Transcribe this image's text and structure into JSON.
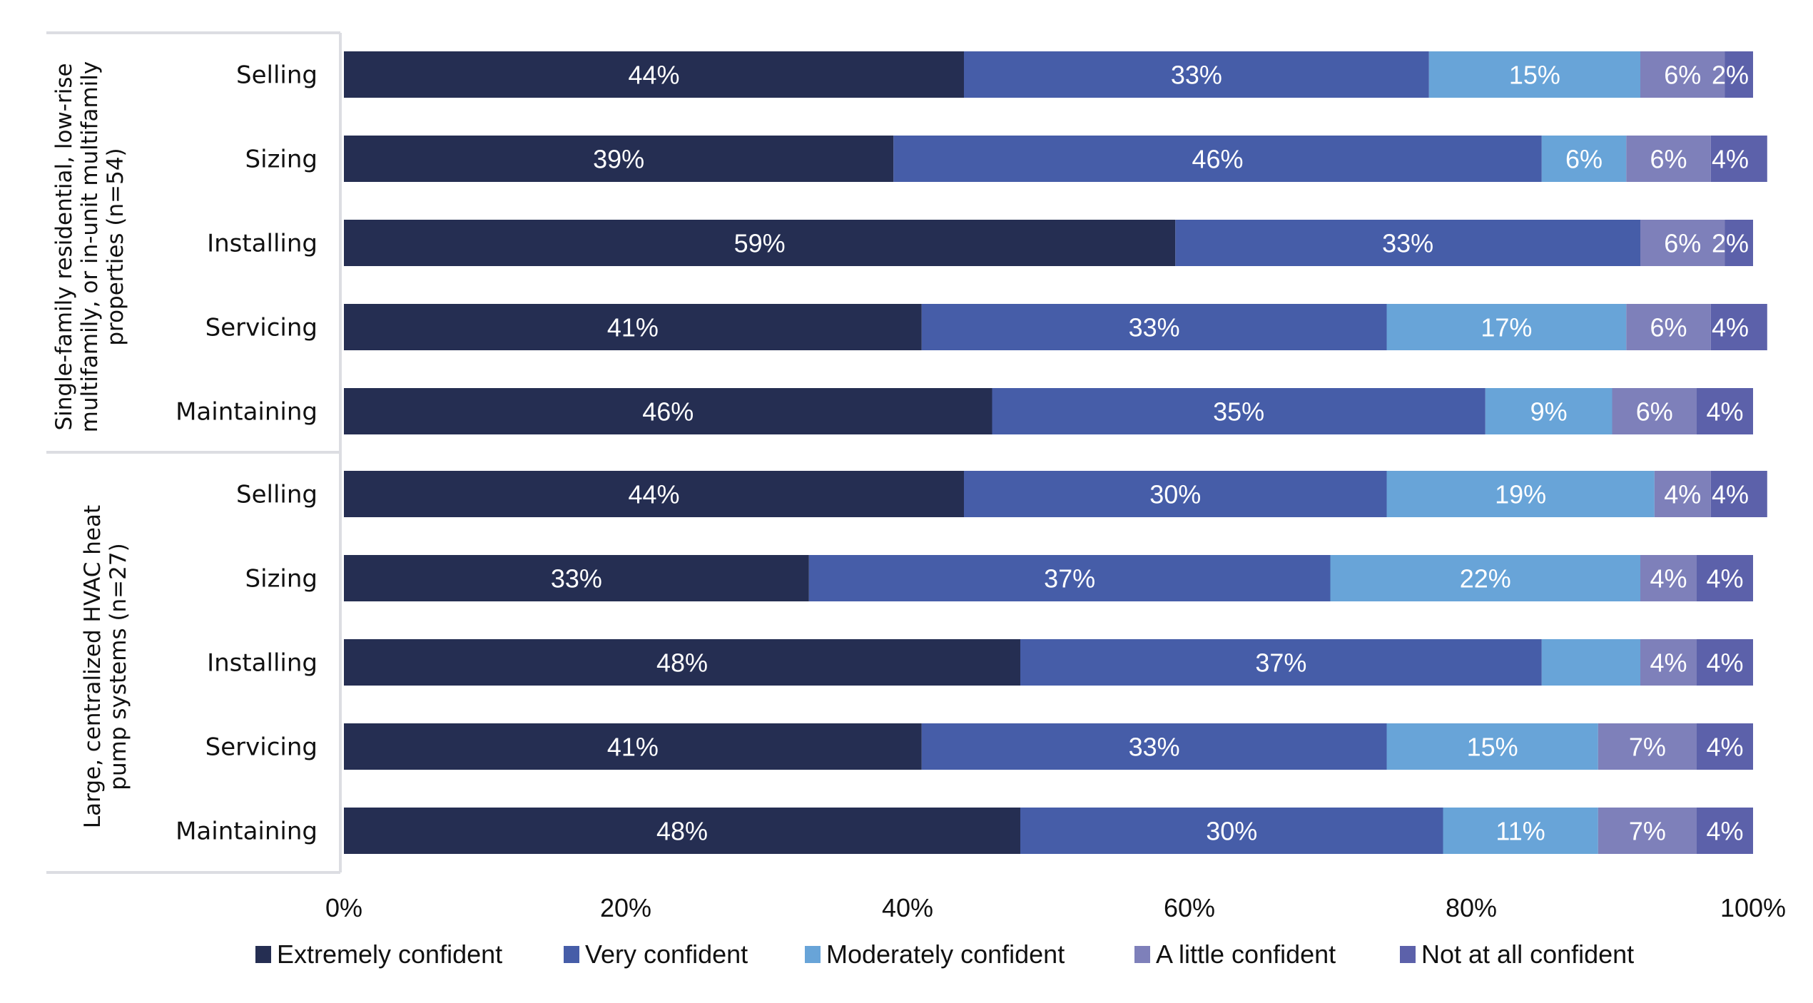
{
  "chart_data": {
    "type": "bar",
    "orientation": "horizontal",
    "stacked": true,
    "title": "",
    "xlabel": "",
    "ylabel": "",
    "xlim": [
      0,
      100
    ],
    "x_ticks": [
      "0%",
      "20%",
      "40%",
      "60%",
      "80%",
      "100%"
    ],
    "legend_position": "bottom",
    "grid": false,
    "series": [
      {
        "name": "Extremely confident",
        "color": "#252E52"
      },
      {
        "name": "Very confident",
        "color": "#465DA8"
      },
      {
        "name": "Moderately confident",
        "color": "#68A4D8"
      },
      {
        "name": "A little confident",
        "color": "#7E80BA"
      },
      {
        "name": "Not at all confident",
        "color": "#5C61AA"
      }
    ],
    "groups": [
      {
        "label": "Single-family residential, low-rise multifamily, or in-unit multifamily properties (n=54)",
        "label_lines": [
          "Single-family residential, low-rise",
          "multifamily, or in-unit multifamily",
          "properties (n=54)"
        ],
        "categories": [
          {
            "name": "Selling",
            "values": [
              44,
              33,
              15,
              6,
              2
            ],
            "labels": [
              "44%",
              "33%",
              "15%",
              "6%",
              "2%"
            ]
          },
          {
            "name": "Sizing",
            "values": [
              39,
              46,
              6,
              6,
              4
            ],
            "labels": [
              "39%",
              "46%",
              "6%",
              "6%",
              "4%"
            ]
          },
          {
            "name": "Installing",
            "values": [
              59,
              33,
              0,
              6,
              2
            ],
            "labels": [
              "59%",
              "33%",
              "",
              "6%",
              "2%"
            ]
          },
          {
            "name": "Servicing",
            "values": [
              41,
              33,
              17,
              6,
              4
            ],
            "labels": [
              "41%",
              "33%",
              "17%",
              "6%",
              "4%"
            ]
          },
          {
            "name": "Maintaining",
            "values": [
              46,
              35,
              9,
              6,
              4
            ],
            "labels": [
              "46%",
              "35%",
              "9%",
              "6%",
              "4%"
            ]
          }
        ]
      },
      {
        "label": "Large, centralized HVAC heat pump systems (n=27)",
        "label_lines": [
          "Large, centralized HVAC heat",
          "pump systems (n=27)"
        ],
        "categories": [
          {
            "name": "Selling",
            "values": [
              44,
              30,
              19,
              4,
              4
            ],
            "labels": [
              "44%",
              "30%",
              "19%",
              "4%",
              "4%"
            ]
          },
          {
            "name": "Sizing",
            "values": [
              33,
              37,
              22,
              4,
              4
            ],
            "labels": [
              "33%",
              "37%",
              "22%",
              "4%",
              "4%"
            ]
          },
          {
            "name": "Installing",
            "values": [
              48,
              37,
              7,
              4,
              4
            ],
            "labels": [
              "48%",
              "37%",
              "",
              "4%",
              "4%"
            ]
          },
          {
            "name": "Servicing",
            "values": [
              41,
              33,
              15,
              7,
              4
            ],
            "labels": [
              "41%",
              "33%",
              "15%",
              "7%",
              "4%"
            ]
          },
          {
            "name": "Maintaining",
            "values": [
              48,
              30,
              11,
              7,
              4
            ],
            "labels": [
              "48%",
              "30%",
              "11%",
              "7%",
              "4%"
            ]
          }
        ]
      }
    ]
  }
}
